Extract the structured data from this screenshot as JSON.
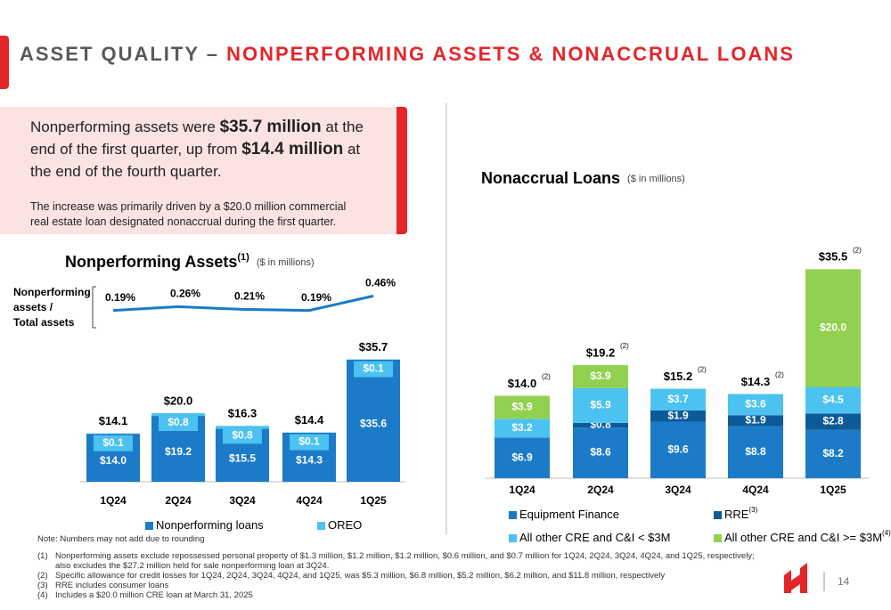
{
  "header": {
    "title_gray": "ASSET QUALITY – ",
    "title_red": "NONPERFORMING ASSETS & NONACCRUAL LOANS"
  },
  "callout": {
    "parts": [
      "Nonperforming assets were ",
      "$35.7 million",
      " at the end of the first quarter, up from ",
      "$14.4 million",
      " at the end of the fourth quarter."
    ],
    "detail": "The increase was primarily driven by a $20.0 million commercial real estate loan designated nonaccrual during the first quarter."
  },
  "chart_data": [
    {
      "type": "bar",
      "stacked": true,
      "title": "Nonperforming Assets",
      "title_note": "(1)",
      "subtitle": "($ in millions)",
      "categories": [
        "1Q24",
        "2Q24",
        "3Q24",
        "4Q24",
        "1Q25"
      ],
      "series": [
        {
          "name": "Nonperforming loans",
          "color": "#1b7bc8",
          "values": [
            14.0,
            19.2,
            15.5,
            14.3,
            35.6
          ],
          "value_labels": [
            "$14.0",
            "$19.2",
            "$15.5",
            "$14.3",
            "$35.6"
          ]
        },
        {
          "name": "OREO",
          "color": "#4cc2f1",
          "values": [
            0.1,
            0.8,
            0.8,
            0.1,
            0.1
          ],
          "value_labels": [
            "$0.1",
            "$0.8",
            "$0.8",
            "$0.1",
            "$0.1"
          ]
        }
      ],
      "total_labels": [
        "$14.1",
        "$20.0",
        "$16.3",
        "$14.4",
        "$35.7"
      ],
      "ylim": [
        0,
        40
      ],
      "legend": "bottom"
    },
    {
      "type": "line",
      "label": [
        "Nonperforming",
        "assets /",
        "Total assets"
      ],
      "values": [
        0.19,
        0.26,
        0.21,
        0.19,
        0.46
      ],
      "value_labels": [
        "0.19%",
        "0.26%",
        "0.21%",
        "0.19%",
        "0.46%"
      ],
      "color": "#1b7bc8",
      "ylim": [
        0,
        0.5
      ]
    },
    {
      "type": "bar",
      "stacked": true,
      "title": "Nonaccrual Loans",
      "subtitle": "($ in millions)",
      "categories": [
        "1Q24",
        "2Q24",
        "3Q24",
        "4Q24",
        "1Q25"
      ],
      "series": [
        {
          "name": "Equipment Finance",
          "color": "#1b7bc8",
          "values": [
            6.9,
            8.6,
            9.6,
            8.8,
            8.2
          ],
          "value_labels": [
            "$6.9",
            "$8.6",
            "$9.6",
            "$8.8",
            "$8.2"
          ]
        },
        {
          "name": "RRE",
          "note": "(3)",
          "color": "#0d5a99",
          "values": [
            null,
            0.8,
            1.9,
            1.9,
            2.8
          ],
          "value_labels": [
            null,
            "$0.8",
            "$1.9",
            "$1.9",
            "$2.8"
          ]
        },
        {
          "name": "All other CRE and C&I < $3M",
          "color": "#4cc2f1",
          "values": [
            3.2,
            5.9,
            3.7,
            3.6,
            4.5
          ],
          "value_labels": [
            "$3.2",
            "$5.9",
            "$3.7",
            "$3.6",
            "$4.5"
          ]
        },
        {
          "name": "All other CRE and C&I >= $3M",
          "note": "(4)",
          "color": "#92d050",
          "values": [
            3.9,
            3.9,
            null,
            null,
            20.0
          ],
          "value_labels": [
            "$3.9",
            "$3.9",
            null,
            null,
            "$20.0"
          ]
        }
      ],
      "total_labels": [
        "$14.0",
        "$19.2",
        "$15.2",
        "$14.3",
        "$35.5"
      ],
      "total_notes": [
        "(2)",
        "(2)",
        "(2)",
        "(2)",
        "(2)"
      ],
      "ylim": [
        0,
        36
      ],
      "legend": "bottom"
    }
  ],
  "notes": {
    "rounding": "Note: Numbers may not add due to rounding",
    "footnotes": [
      {
        "marker": "(1)",
        "text": "Nonperforming assets exclude repossessed personal property of $1.3 million, $1.2 million, $1.2 million, $0.6 million, and $0.7 million for 1Q24, 2Q24, 3Q24, 4Q24, and 1Q25, respectively; also excludes the $27.2 million held for sale nonperforming loan at 3Q24."
      },
      {
        "marker": "(2)",
        "text": "Specific allowance for credit losses for 1Q24, 2Q24, 3Q24, 4Q24, and 1Q25, was $5.3 million, $6.8 million, $5.2 million, $6.2 million, and $11.8 million, respectively"
      },
      {
        "marker": "(3)",
        "text": "RRE includes consumer loans"
      },
      {
        "marker": "(4)",
        "text": "Includes a $20.0 million CRE loan at March 31, 2025"
      }
    ]
  },
  "page_number": "14"
}
